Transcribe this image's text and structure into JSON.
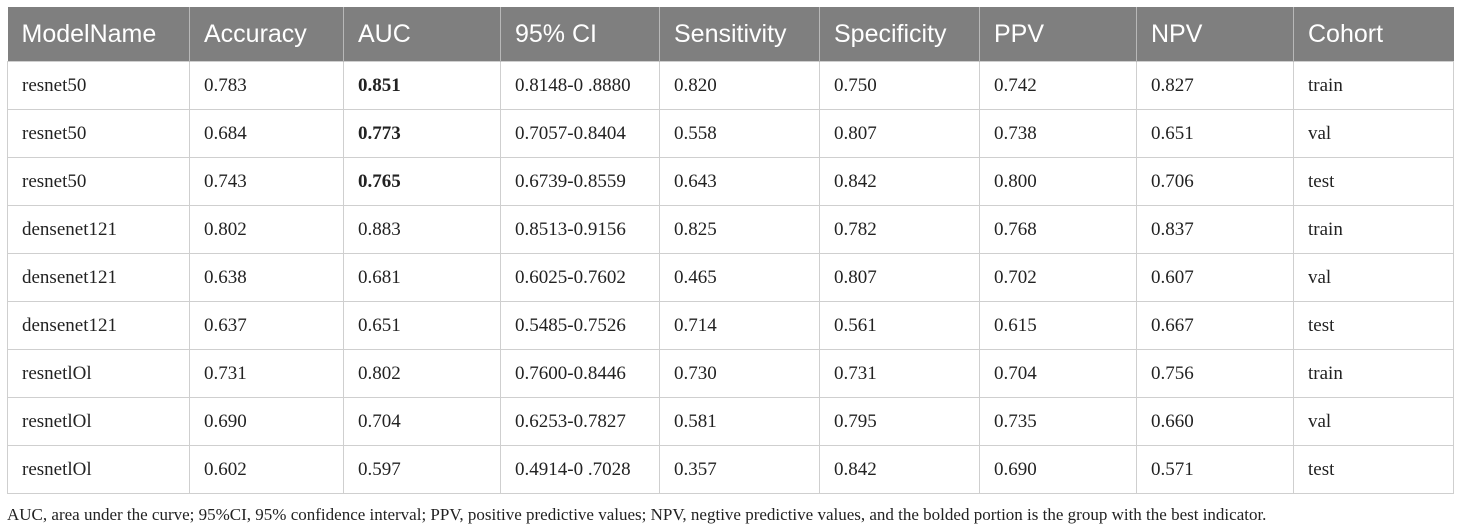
{
  "table": {
    "headers": [
      "ModelName",
      "Accuracy",
      "AUC",
      "95% CI",
      "Sensitivity",
      "Specificity",
      "PPV",
      "NPV",
      "Cohort"
    ],
    "rows": [
      {
        "cells": [
          "resnet50",
          "0.783",
          "0.851",
          "0.8148-0 .8880",
          "0.820",
          "0.750",
          "0.742",
          "0.827",
          "train"
        ],
        "bold_auc": true
      },
      {
        "cells": [
          "resnet50",
          "0.684",
          "0.773",
          "0.7057-0.8404",
          "0.558",
          "0.807",
          "0.738",
          "0.651",
          "val"
        ],
        "bold_auc": true
      },
      {
        "cells": [
          "resnet50",
          "0.743",
          "0.765",
          "0.6739-0.8559",
          "0.643",
          "0.842",
          "0.800",
          "0.706",
          "test"
        ],
        "bold_auc": true
      },
      {
        "cells": [
          "densenet121",
          "0.802",
          "0.883",
          "0.8513-0.9156",
          "0.825",
          "0.782",
          "0.768",
          "0.837",
          "train"
        ],
        "bold_auc": false
      },
      {
        "cells": [
          "densenet121",
          "0.638",
          "0.681",
          "0.6025-0.7602",
          "0.465",
          "0.807",
          "0.702",
          "0.607",
          "val"
        ],
        "bold_auc": false
      },
      {
        "cells": [
          "densenet121",
          "0.637",
          "0.651",
          "0.5485-0.7526",
          "0.714",
          "0.561",
          "0.615",
          "0.667",
          "test"
        ],
        "bold_auc": false
      },
      {
        "cells": [
          "resnetlOl",
          "0.731",
          "0.802",
          "0.7600-0.8446",
          "0.730",
          "0.731",
          "0.704",
          "0.756",
          "train"
        ],
        "bold_auc": false
      },
      {
        "cells": [
          "resnetlOl",
          "0.690",
          "0.704",
          "0.6253-0.7827",
          "0.581",
          "0.795",
          "0.735",
          "0.660",
          "val"
        ],
        "bold_auc": false
      },
      {
        "cells": [
          "resnetlOl",
          "0.602",
          "0.597",
          "0.4914-0 .7028",
          "0.357",
          "0.842",
          "0.690",
          "0.571",
          "test"
        ],
        "bold_auc": false
      }
    ]
  },
  "footnote": "AUC, area under the curve; 95%CI, 95% confidence interval; PPV, positive predictive values; NPV, negtive predictive values, and the bolded portion is the group with the best indicator.",
  "colors": {
    "header_bg": "#7f7f7f",
    "header_text": "#ffffff",
    "border": "#cfcfcf"
  }
}
